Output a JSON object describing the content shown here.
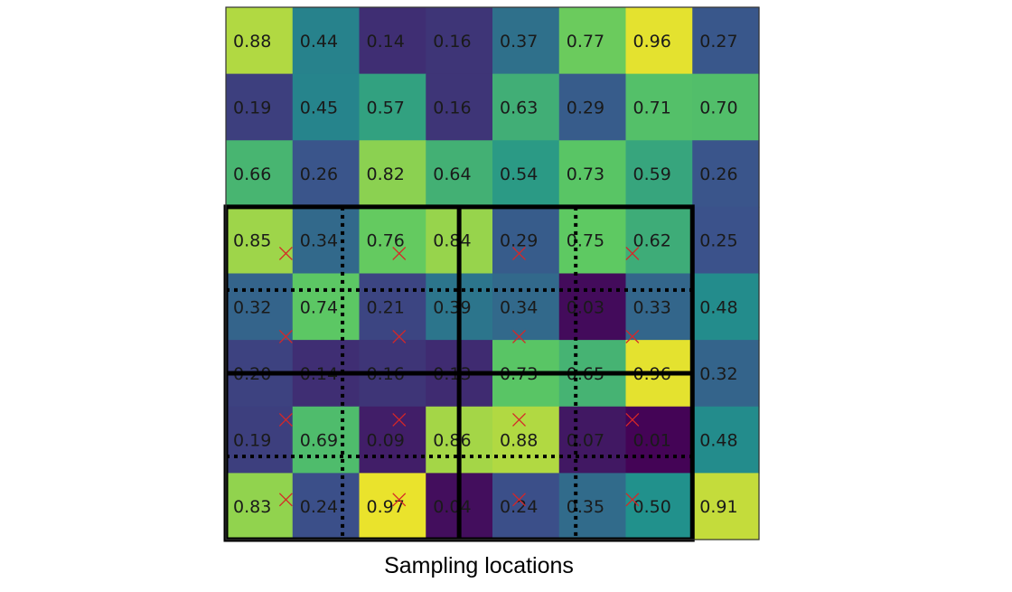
{
  "caption": "Sampling locations",
  "chart_data": {
    "type": "heatmap",
    "colormap": "viridis",
    "value_range": [
      0,
      1
    ],
    "rows": 8,
    "cols": 8,
    "values": [
      [
        0.88,
        0.44,
        0.14,
        0.16,
        0.37,
        0.77,
        0.96,
        0.27
      ],
      [
        0.19,
        0.45,
        0.57,
        0.16,
        0.63,
        0.29,
        0.71,
        0.7
      ],
      [
        0.66,
        0.26,
        0.82,
        0.64,
        0.54,
        0.73,
        0.59,
        0.26
      ],
      [
        0.85,
        0.34,
        0.76,
        0.84,
        0.29,
        0.75,
        0.62,
        0.25
      ],
      [
        0.32,
        0.74,
        0.21,
        0.39,
        0.34,
        0.03,
        0.33,
        0.48
      ],
      [
        0.2,
        0.14,
        0.16,
        0.13,
        0.73,
        0.65,
        0.96,
        0.32
      ],
      [
        0.19,
        0.69,
        0.09,
        0.86,
        0.88,
        0.07,
        0.01,
        0.48
      ],
      [
        0.83,
        0.24,
        0.97,
        0.04,
        0.24,
        0.35,
        0.5,
        0.91
      ]
    ],
    "sampling_points": [
      [
        3.7,
        0.9
      ],
      [
        3.7,
        2.6
      ],
      [
        3.7,
        4.4
      ],
      [
        3.7,
        6.1
      ],
      [
        4.95,
        0.9
      ],
      [
        4.95,
        2.6
      ],
      [
        4.95,
        4.4
      ],
      [
        4.95,
        6.1
      ],
      [
        6.2,
        0.9
      ],
      [
        6.2,
        2.6
      ],
      [
        6.2,
        4.4
      ],
      [
        6.2,
        6.1
      ],
      [
        7.4,
        0.9
      ],
      [
        7.4,
        2.6
      ],
      [
        7.4,
        4.4
      ],
      [
        7.4,
        6.1
      ]
    ],
    "marker_color": "#d62728",
    "marker": "x",
    "solid_grid": {
      "row_range": [
        3,
        8
      ],
      "col_range": [
        0,
        7
      ],
      "row_lines": [
        5.5
      ],
      "col_lines": [
        3.5
      ]
    },
    "dotted_grid": {
      "row_lines": [
        4.25,
        6.75
      ],
      "col_lines": [
        1.75,
        5.25
      ]
    }
  }
}
